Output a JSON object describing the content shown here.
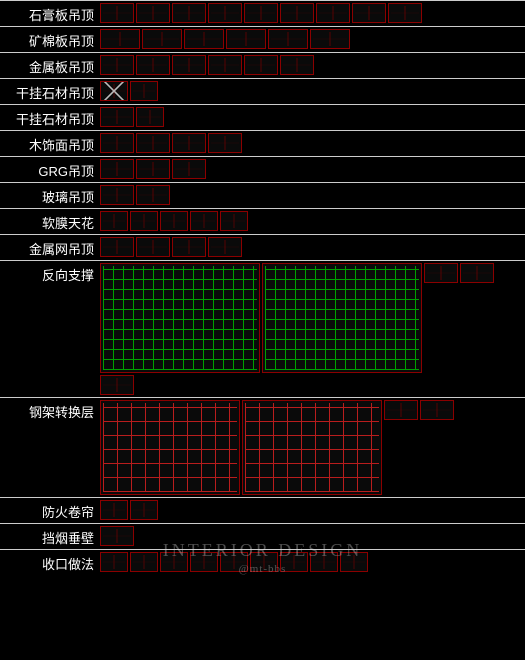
{
  "colors": {
    "background": "#000000",
    "text": "#ffffff",
    "rule": "#cccccc",
    "thumb_border": "#8b0000",
    "green_grid": "#00b000",
    "red_grid": "#cc2020"
  },
  "watermark": {
    "line1": "INTERIOR DESIGN",
    "line2": "@mt-bbs"
  },
  "rows": [
    {
      "label": "石膏板吊顶",
      "thumbs": [
        {
          "c": "m"
        },
        {
          "c": "m"
        },
        {
          "c": "m"
        },
        {
          "c": "m"
        },
        {
          "c": "m"
        },
        {
          "c": "m"
        },
        {
          "c": "m"
        },
        {
          "c": "m"
        },
        {
          "c": "m"
        }
      ]
    },
    {
      "label": "矿棉板吊顶",
      "thumbs": [
        {
          "c": "w"
        },
        {
          "c": "w"
        },
        {
          "c": "w"
        },
        {
          "c": "w"
        },
        {
          "c": "w"
        },
        {
          "c": "w"
        }
      ]
    },
    {
      "label": "金属板吊顶",
      "thumbs": [
        {
          "c": "m"
        },
        {
          "c": "m"
        },
        {
          "c": "m"
        },
        {
          "c": "m"
        },
        {
          "c": "m"
        },
        {
          "c": "m"
        }
      ]
    },
    {
      "label": "干挂石材吊顶",
      "thumbs": [
        {
          "c": "s x"
        },
        {
          "c": "s"
        }
      ]
    },
    {
      "label": "干挂石材吊顶",
      "thumbs": [
        {
          "c": "m"
        },
        {
          "c": "s"
        }
      ]
    },
    {
      "label": "木饰面吊顶",
      "thumbs": [
        {
          "c": "m"
        },
        {
          "c": "m"
        },
        {
          "c": "m"
        },
        {
          "c": "m"
        }
      ]
    },
    {
      "label": "GRG吊顶",
      "thumbs": [
        {
          "c": "m"
        },
        {
          "c": "m"
        },
        {
          "c": "m"
        }
      ]
    },
    {
      "label": "玻璃吊顶",
      "thumbs": [
        {
          "c": "m"
        },
        {
          "c": "m"
        }
      ]
    },
    {
      "label": "软膜天花",
      "thumbs": [
        {
          "c": "s"
        },
        {
          "c": "s"
        },
        {
          "c": "s"
        },
        {
          "c": "s"
        },
        {
          "c": "s"
        }
      ]
    },
    {
      "label": "金属网吊顶",
      "thumbs": [
        {
          "c": "m"
        },
        {
          "c": "m"
        },
        {
          "c": "m"
        },
        {
          "c": "m"
        }
      ]
    },
    {
      "label": "反向支撑",
      "height": "tall",
      "thumbs": [
        {
          "c": "xl green"
        },
        {
          "c": "xl green"
        },
        {
          "c": "m"
        },
        {
          "c": "m"
        },
        {
          "c": "m"
        }
      ]
    },
    {
      "label": "钢架转换层",
      "height": "med",
      "thumbs": [
        {
          "c": "lg red"
        },
        {
          "c": "lg red"
        },
        {
          "c": "m"
        },
        {
          "c": "m"
        }
      ]
    },
    {
      "label": "防火卷帘",
      "thumbs": [
        {
          "c": "s"
        },
        {
          "c": "s"
        }
      ]
    },
    {
      "label": "挡烟垂壁",
      "thumbs": [
        {
          "c": "m"
        }
      ]
    },
    {
      "label": "收口做法",
      "thumbs": [
        {
          "c": "s"
        },
        {
          "c": "s"
        },
        {
          "c": "s"
        },
        {
          "c": "s"
        },
        {
          "c": "s"
        },
        {
          "c": "s"
        },
        {
          "c": "s"
        },
        {
          "c": "s"
        },
        {
          "c": "s"
        }
      ]
    }
  ]
}
